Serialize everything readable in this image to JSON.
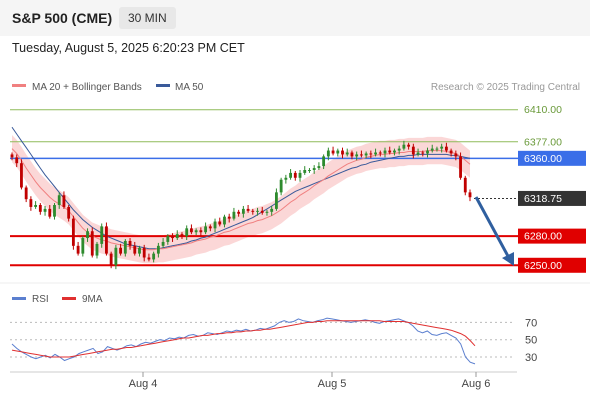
{
  "header": {
    "instrument": "S&P 500 (CME)",
    "timeframe": "30 MIN"
  },
  "datetime": "Tuesday, August 5, 2025 6:20:23 PM CET",
  "legend": {
    "bollinger": "MA 20 + Bollinger Bands",
    "ma50": "MA 50",
    "credit": "Research © 2025 Trading Central",
    "rsi": "RSI",
    "ma9": "9MA"
  },
  "colors": {
    "bullish": "#2e8b2e",
    "bearish": "#c00000",
    "ma20": "#f08080",
    "band": "#f9c9c9",
    "ma50": "#3a5a9a",
    "resistance": "#8fbc5a",
    "support": "#e00000",
    "pivot": "#3a6ee8",
    "current": "#333333",
    "arrow": "#2f5f9f",
    "rsi": "#5b7fcf",
    "rsi_ma": "#e03030"
  },
  "chart_data": [
    {
      "type": "candlestick",
      "y_range": [
        6240,
        6420
      ],
      "x_ticks": [
        "Aug 4",
        "Aug 5",
        "Aug 6"
      ],
      "levels": [
        {
          "label": "6410.00",
          "value": 6410.0,
          "kind": "resistance"
        },
        {
          "label": "6377.00",
          "value": 6377.0,
          "kind": "resistance"
        },
        {
          "label": "6360.00",
          "value": 6360.0,
          "kind": "pivot"
        },
        {
          "label": "6318.75",
          "value": 6318.75,
          "kind": "current"
        },
        {
          "label": "6280.00",
          "value": 6280.0,
          "kind": "support"
        },
        {
          "label": "6250.00",
          "value": 6250.0,
          "kind": "support"
        }
      ],
      "closes": [
        6361,
        6355,
        6330,
        6318,
        6310,
        6312,
        6305,
        6308,
        6300,
        6312,
        6322,
        6310,
        6298,
        6270,
        6262,
        6278,
        6285,
        6260,
        6272,
        6290,
        6262,
        6250,
        6268,
        6262,
        6275,
        6270,
        6262,
        6268,
        6258,
        6256,
        6262,
        6270,
        6274,
        6280,
        6278,
        6282,
        6280,
        6288,
        6284,
        6286,
        6284,
        6290,
        6288,
        6295,
        6292,
        6300,
        6298,
        6305,
        6303,
        6308,
        6306,
        6305,
        6306,
        6304,
        6305,
        6308,
        6325,
        6338,
        6340,
        6345,
        6340,
        6345,
        6348,
        6348,
        6350,
        6352,
        6362,
        6368,
        6365,
        6368,
        6364,
        6366,
        6362,
        6364,
        6363,
        6365,
        6364,
        6366,
        6365,
        6368,
        6366,
        6368,
        6370,
        6374,
        6372,
        6364,
        6366,
        6365,
        6368,
        6370,
        6370,
        6372,
        6368,
        6365,
        6362,
        6340,
        6325,
        6320
      ],
      "ma20": [
        6370,
        6365,
        6358,
        6350,
        6343,
        6336,
        6330,
        6325,
        6320,
        6316,
        6313,
        6310,
        6306,
        6300,
        6294,
        6288,
        6284,
        6280,
        6278,
        6276,
        6275,
        6273,
        6272,
        6271,
        6270,
        6269,
        6268,
        6267,
        6266,
        6266,
        6266,
        6267,
        6267,
        6268,
        6269,
        6270,
        6271,
        6272,
        6273,
        6275,
        6276,
        6277,
        6279,
        6280,
        6282,
        6284,
        6285,
        6287,
        6289,
        6291,
        6293,
        6294,
        6296,
        6297,
        6299,
        6301,
        6304,
        6307,
        6311,
        6315,
        6318,
        6322,
        6325,
        6328,
        6332,
        6335,
        6338,
        6342,
        6345,
        6348,
        6351,
        6354,
        6356,
        6358,
        6359,
        6361,
        6362,
        6363,
        6364,
        6364,
        6365,
        6365,
        6366,
        6366,
        6367,
        6367,
        6367,
        6367,
        6368,
        6368,
        6368,
        6368,
        6367,
        6366,
        6365,
        6362,
        6358,
        6354
      ],
      "ma50": [
        6392,
        6385,
        6378,
        6371,
        6364,
        6357,
        6350,
        6343,
        6337,
        6331,
        6325,
        6319,
        6313,
        6307,
        6302,
        6297,
        6293,
        6289,
        6286,
        6283,
        6280,
        6278,
        6276,
        6274,
        6272,
        6271,
        6270,
        6269,
        6268,
        6267,
        6267,
        6267,
        6268,
        6269,
        6270,
        6271,
        6272,
        6273,
        6275,
        6276,
        6278,
        6279,
        6281,
        6283,
        6285,
        6287,
        6289,
        6291,
        6293,
        6295,
        6297,
        6299,
        6302,
        6305,
        6308,
        6311,
        6314,
        6317,
        6320,
        6323,
        6326,
        6328,
        6330,
        6332,
        6334,
        6336,
        6338,
        6340,
        6342,
        6344,
        6346,
        6348,
        6350,
        6351,
        6353,
        6354,
        6356,
        6357,
        6358,
        6359,
        6360,
        6361,
        6362,
        6362,
        6363,
        6363,
        6364,
        6364,
        6364,
        6364,
        6364,
        6364,
        6364,
        6363,
        6363,
        6362,
        6361,
        6360
      ]
    },
    {
      "type": "line",
      "title": "RSI",
      "y_range": [
        15,
        82
      ],
      "y_ticks": [
        70,
        50,
        30
      ],
      "x_ticks": [
        "Aug 4",
        "Aug 5",
        "Aug 6"
      ],
      "rsi": [
        45,
        40,
        36,
        33,
        30,
        28,
        30,
        32,
        29,
        33,
        30,
        26,
        28,
        30,
        34,
        36,
        38,
        40,
        34,
        36,
        42,
        40,
        38,
        40,
        43,
        44,
        42,
        45,
        47,
        46,
        48,
        50,
        49,
        52,
        51,
        53,
        52,
        55,
        56,
        54,
        55,
        58,
        57,
        56,
        58,
        60,
        59,
        61,
        60,
        62,
        60,
        61,
        63,
        62,
        64,
        66,
        70,
        72,
        70,
        71,
        74,
        72,
        71,
        70,
        72,
        73,
        75,
        74,
        73,
        72,
        71,
        70,
        71,
        72,
        73,
        72,
        70,
        69,
        71,
        72,
        73,
        74,
        72,
        70,
        66,
        60,
        58,
        60,
        56,
        55,
        57,
        58,
        55,
        52,
        45,
        30,
        24,
        22
      ],
      "ma9": [
        38,
        37,
        36,
        35,
        34,
        33,
        32,
        31,
        30,
        30,
        30,
        30,
        30,
        31,
        32,
        33,
        34,
        35,
        36,
        37,
        38,
        39,
        39,
        40,
        41,
        41,
        42,
        43,
        44,
        45,
        46,
        47,
        48,
        49,
        50,
        51,
        52,
        52,
        53,
        54,
        55,
        55,
        56,
        57,
        57,
        58,
        58,
        59,
        59,
        60,
        60,
        61,
        61,
        62,
        62,
        63,
        64,
        65,
        66,
        67,
        68,
        69,
        70,
        70,
        71,
        71,
        72,
        72,
        72,
        72,
        72,
        72,
        72,
        72,
        72,
        72,
        72,
        72,
        71,
        71,
        71,
        71,
        71,
        70,
        69,
        68,
        67,
        66,
        65,
        64,
        63,
        62,
        61,
        59,
        57,
        54,
        49,
        43
      ]
    }
  ]
}
